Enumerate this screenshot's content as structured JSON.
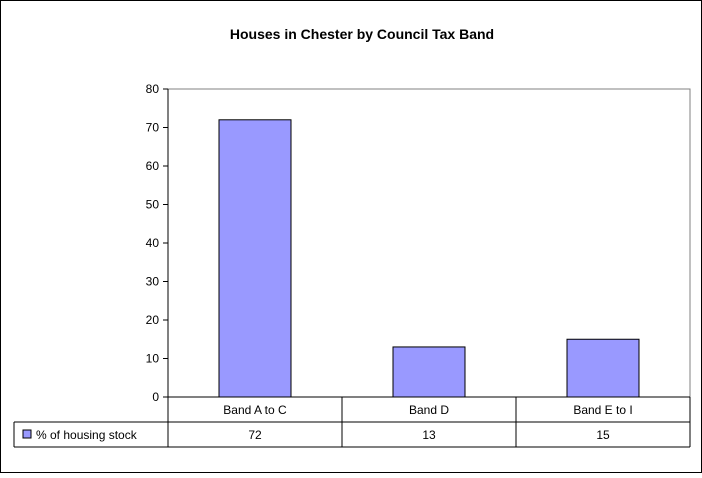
{
  "chart_data": {
    "type": "bar",
    "title": "Houses in Chester by Council Tax Band",
    "categories": [
      "Band A to C",
      "Band D",
      "Band E to I"
    ],
    "series": [
      {
        "name": "% of housing stock",
        "values": [
          72,
          13,
          15
        ],
        "color": "#9999ff"
      }
    ],
    "ylim": [
      0,
      80
    ],
    "yticks": [
      0,
      10,
      20,
      30,
      40,
      50,
      60,
      70,
      80
    ],
    "grid": false,
    "legend": "data-table-left",
    "plot_background": "#ffffff"
  }
}
